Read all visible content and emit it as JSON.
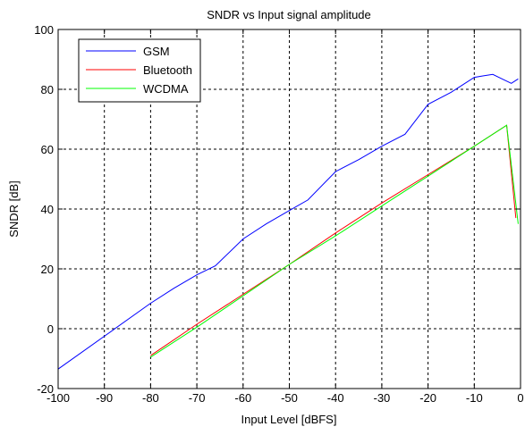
{
  "chart_data": {
    "type": "line",
    "title": "SNDR vs Input signal amplitude",
    "xlabel": "Input Level [dBFS]",
    "ylabel": "SNDR [dB]",
    "xlim": [
      -100,
      0
    ],
    "ylim": [
      -20,
      100
    ],
    "xticks": [
      -100,
      -90,
      -80,
      -70,
      -60,
      -50,
      -40,
      -30,
      -20,
      -10,
      0
    ],
    "yticks": [
      -20,
      0,
      20,
      40,
      60,
      80,
      100
    ],
    "grid": true,
    "legend_position": "top-left",
    "series": [
      {
        "name": "GSM",
        "color": "#0000ff",
        "x": [
          -100,
          -90,
          -80,
          -75,
          -70,
          -66,
          -60,
          -55,
          -50,
          -46,
          -40,
          -35,
          -30,
          -25,
          -20,
          -15,
          -10,
          -8,
          -6,
          -4,
          -2,
          -0.5
        ],
        "y": [
          -13.5,
          -2.5,
          8.5,
          13.5,
          18,
          21,
          30,
          35,
          39.5,
          43,
          52.5,
          56.5,
          61,
          65,
          75,
          79,
          84,
          84.5,
          85,
          83.5,
          82,
          83.5
        ]
      },
      {
        "name": "Bluetooth",
        "color": "#ff0000",
        "x": [
          -80,
          -70,
          -60,
          -50,
          -40,
          -30,
          -20,
          -10,
          -3,
          -1
        ],
        "y": [
          -9,
          1.5,
          11.5,
          21.5,
          32,
          42,
          51.5,
          61,
          68,
          37
        ]
      },
      {
        "name": "WCDMA",
        "color": "#00ff00",
        "x": [
          -80,
          -70,
          -60,
          -50,
          -40,
          -30,
          -20,
          -10,
          -3,
          -0.5
        ],
        "y": [
          -9.5,
          0.5,
          11,
          21.5,
          31,
          41,
          51,
          61,
          68,
          35
        ]
      }
    ]
  }
}
